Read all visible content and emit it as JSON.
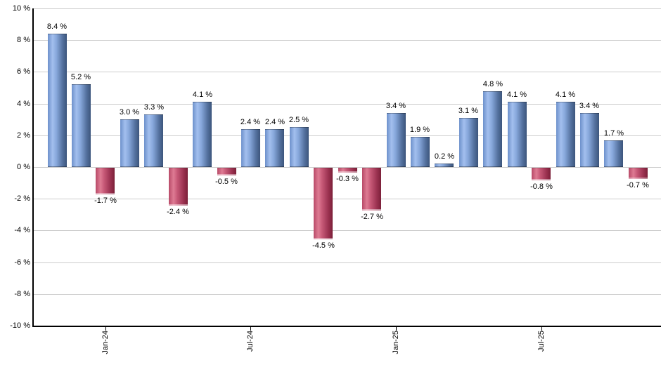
{
  "chart_data": {
    "type": "bar",
    "title": "",
    "xlabel": "",
    "ylabel": "",
    "ylim": [
      -10,
      10
    ],
    "ytick_step": 2,
    "grid": true,
    "legend": "none",
    "background": "#ffffff",
    "values": [
      8.4,
      5.2,
      -1.7,
      3.0,
      3.3,
      -2.4,
      4.1,
      -0.5,
      2.4,
      2.4,
      2.5,
      -4.5,
      -0.3,
      -2.7,
      3.4,
      1.9,
      0.2,
      3.1,
      4.8,
      4.1,
      -0.8,
      4.1,
      3.4,
      1.7,
      -0.7
    ],
    "point_labels": [
      "8.4 %",
      "5.2 %",
      "-1.7 %",
      "3.0 %",
      "3.3 %",
      "-2.4 %",
      "4.1 %",
      "-0.5 %",
      "2.4 %",
      "2.4 %",
      "2.5 %",
      "-4.5 %",
      "-0.3 %",
      "-2.7 %",
      "3.4 %",
      "1.9 %",
      "0.2 %",
      "3.1 %",
      "4.8 %",
      "4.1 %",
      "-0.8 %",
      "4.1 %",
      "3.4 %",
      "1.7 %",
      "-0.7 %"
    ],
    "ytick_values": [
      10,
      8,
      6,
      4,
      2,
      0,
      -2,
      -4,
      -6,
      -8,
      -10
    ],
    "ytick_labels": [
      "10 %",
      "8 %",
      "6 %",
      "4 %",
      "2 %",
      "0 %",
      "-2 %",
      "-4 %",
      "-6 %",
      "-8 %",
      "-10 %"
    ],
    "xticks": [
      {
        "bar_index": 2,
        "label": "Jan-24"
      },
      {
        "bar_index": 8,
        "label": "Jul-24"
      },
      {
        "bar_index": 14,
        "label": "Jan-25"
      },
      {
        "bar_index": 20,
        "label": "Jul-25"
      }
    ],
    "colors": {
      "positive_gradient": [
        "#6d91cb",
        "#a3bfee",
        "#88a8dc",
        "#54719e",
        "#3c557c"
      ],
      "negative_gradient": [
        "#b84a68",
        "#de7b93",
        "#c65876",
        "#9a3150",
        "#7c2039"
      ],
      "grid": "#cccccc",
      "axis": "#000000",
      "text": "#000000"
    }
  }
}
